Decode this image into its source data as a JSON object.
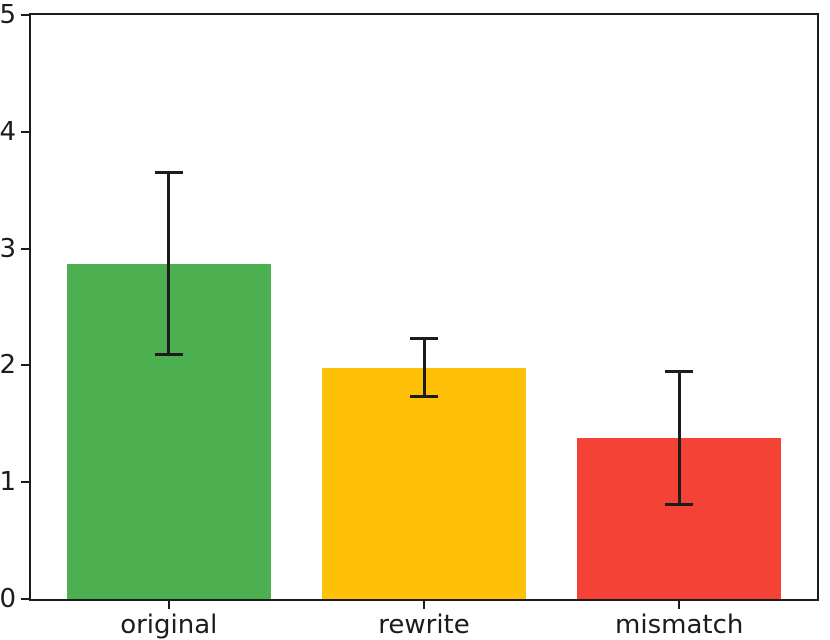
{
  "chart_data": {
    "type": "bar",
    "categories": [
      "original",
      "rewrite",
      "mismatch"
    ],
    "values": [
      2.87,
      1.98,
      1.38
    ],
    "errors": [
      0.78,
      0.25,
      0.57
    ],
    "bar_colors": [
      "#4caf50",
      "#ffc107",
      "#f44336"
    ],
    "title": "",
    "xlabel": "",
    "ylabel": "",
    "ylim": [
      0,
      5
    ],
    "yticks": [
      "0",
      "1",
      "2",
      "3",
      "4",
      "5"
    ],
    "xlim": [
      -0.54,
      2.54
    ],
    "bar_width": 0.8,
    "grid": false,
    "legend": null,
    "error_bar_color": "#1c1c1c",
    "axis_color": "#1c1c1c",
    "background_color": "#ffffff"
  }
}
